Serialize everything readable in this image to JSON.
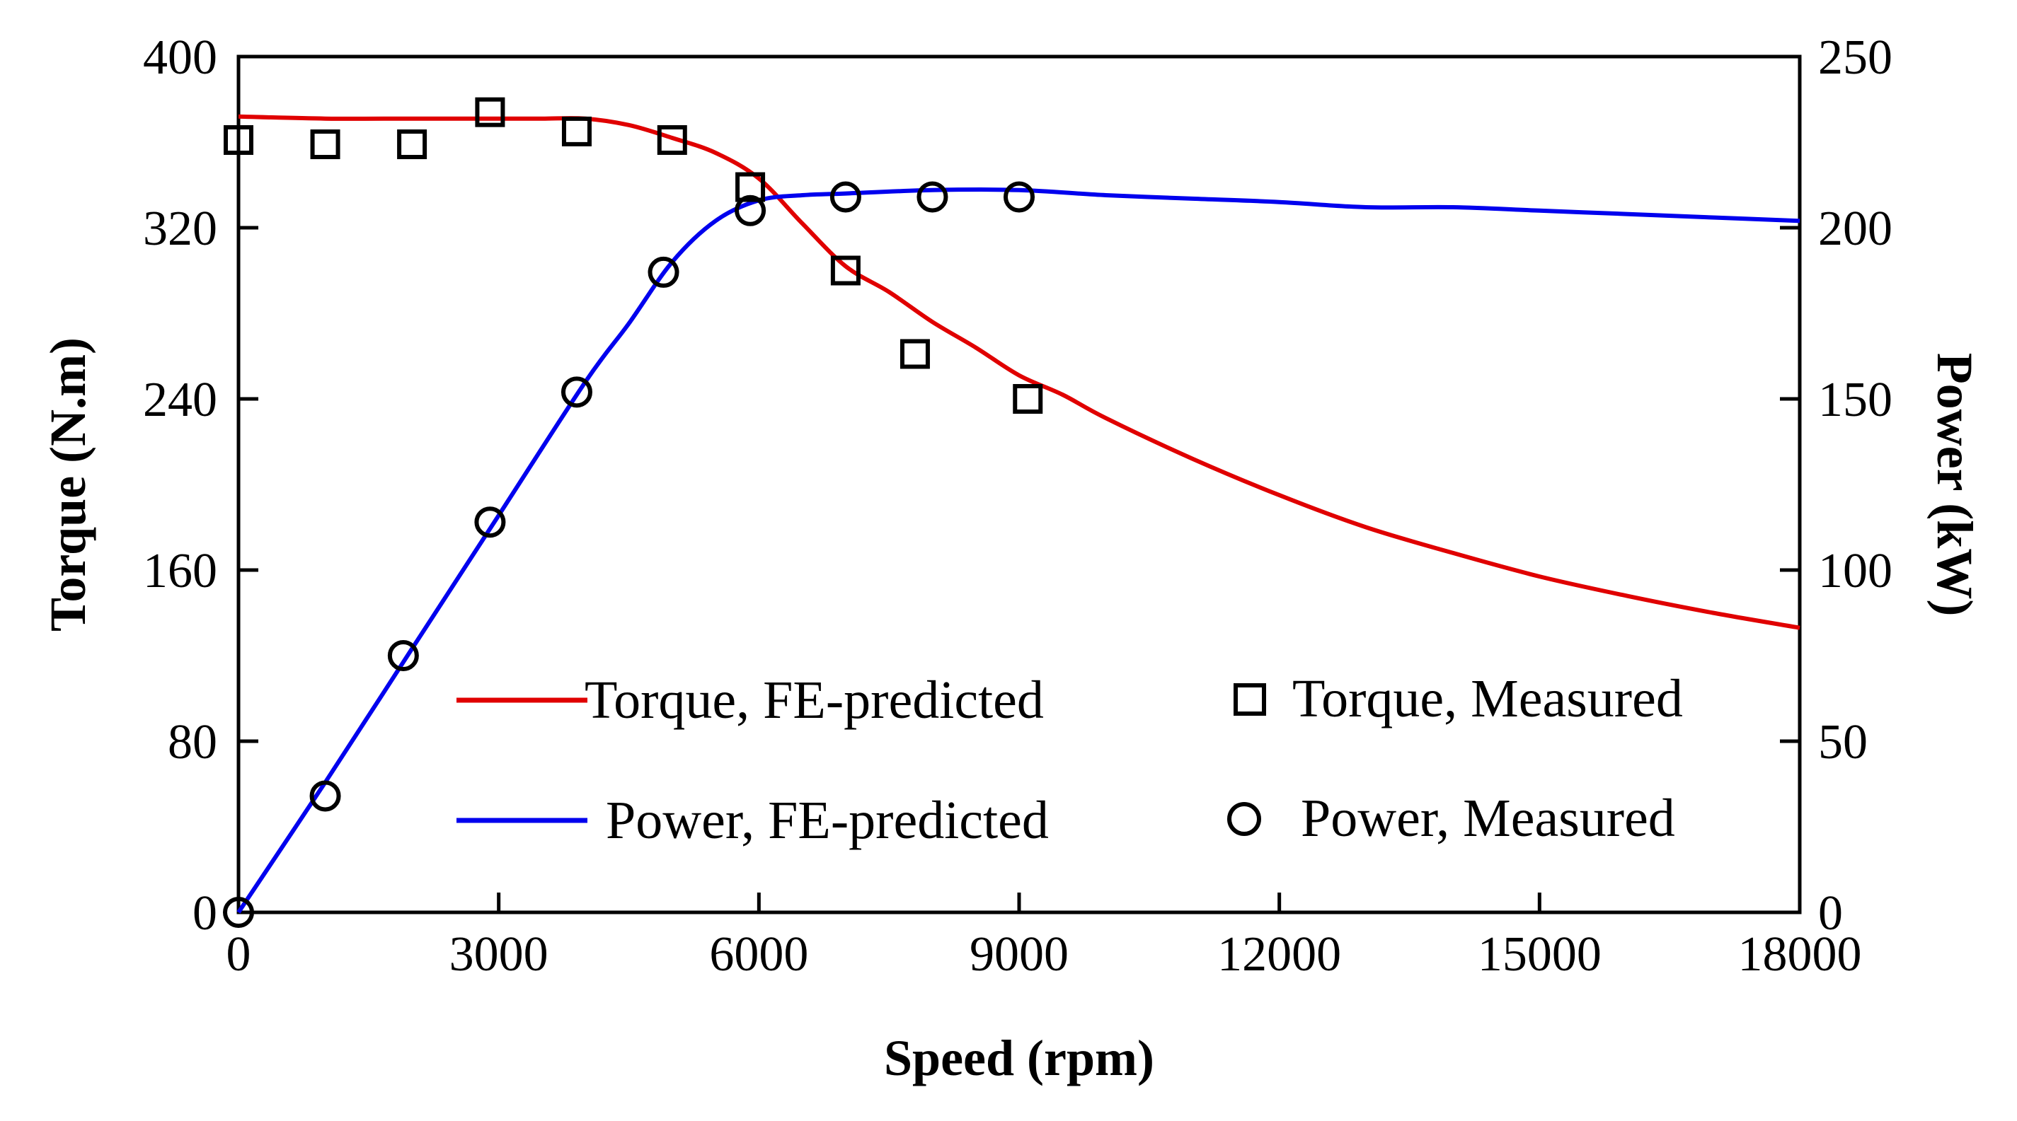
{
  "chart_data": {
    "type": "line",
    "title": "",
    "xlabel": "Speed (rpm)",
    "ylabel_left": "Torque (N.m)",
    "ylabel_right": "Power (kW)",
    "xlim": [
      0,
      18000
    ],
    "ylim_left": [
      0,
      400
    ],
    "ylim_right": [
      0,
      250
    ],
    "x_ticks": [
      0,
      3000,
      6000,
      9000,
      12000,
      15000,
      18000
    ],
    "y_left_ticks": [
      0,
      80,
      160,
      240,
      320,
      400
    ],
    "y_right_ticks": [
      0,
      50,
      100,
      150,
      200,
      250
    ],
    "grid": false,
    "legend_position": "lower-center",
    "series": [
      {
        "name": "Torque, FE-predicted",
        "kind": "line",
        "axis": "left",
        "color": "#e00000",
        "x": [
          0,
          1000,
          2000,
          3000,
          3500,
          4000,
          4500,
          5000,
          5500,
          6000,
          6500,
          7000,
          7500,
          8000,
          8500,
          9000,
          9500,
          10000,
          11000,
          12000,
          13000,
          14000,
          15000,
          16000,
          17000,
          18000
        ],
        "y": [
          372,
          371,
          371,
          371,
          371,
          371,
          368,
          362,
          355,
          343,
          322,
          302,
          290,
          276,
          264,
          251,
          242,
          231,
          212,
          195,
          180,
          168,
          157,
          148,
          140,
          133
        ]
      },
      {
        "name": "Power, FE-predicted",
        "kind": "line",
        "axis": "right",
        "color": "#0000ee",
        "x": [
          0,
          1000,
          2000,
          3000,
          4000,
          4500,
          5000,
          5500,
          6000,
          6500,
          7000,
          8000,
          9000,
          10000,
          11000,
          12000,
          13000,
          14000,
          15000,
          16000,
          17000,
          18000
        ],
        "y": [
          0,
          38,
          77,
          116,
          155,
          172,
          190,
          202,
          208,
          209.5,
          210,
          211,
          211,
          209.5,
          208.5,
          207.5,
          206,
          206,
          205,
          204,
          203,
          202
        ]
      },
      {
        "name": "Torque, Measured",
        "kind": "scatter",
        "marker": "square",
        "axis": "left",
        "x": [
          0,
          1000,
          2000,
          2900,
          3900,
          5000,
          5900,
          7000,
          7800,
          9100
        ],
        "y": [
          361,
          359,
          359,
          374,
          365,
          361,
          339,
          300,
          261,
          240
        ]
      },
      {
        "name": "Power, Measured",
        "kind": "scatter",
        "marker": "circle",
        "axis": "right",
        "x": [
          0,
          1000,
          1900,
          2900,
          3900,
          4900,
          5900,
          7000,
          8000,
          9000
        ],
        "y": [
          0,
          34,
          75,
          114,
          152,
          187,
          205,
          209,
          209,
          209
        ]
      }
    ]
  }
}
